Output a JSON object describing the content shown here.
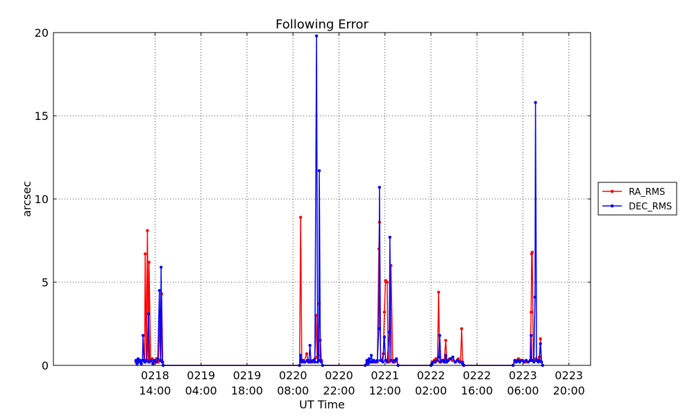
{
  "chart_data": {
    "type": "line",
    "title": "Following Error",
    "xlabel": "UT Time",
    "ylabel": "arcsec",
    "ylim": [
      0,
      20
    ],
    "xlim": [
      "2011-02-17 07:04",
      "2011-02-24 02:36"
    ],
    "x_unit": "UT time",
    "yticks": [
      0,
      5,
      10,
      15,
      20
    ],
    "xticks": [
      {
        "at": "2011-02-18 14:00",
        "date": "0218",
        "time": "14:00"
      },
      {
        "at": "2011-02-19 04:00",
        "date": "0219",
        "time": "04:00"
      },
      {
        "at": "2011-02-19 18:00",
        "date": "0219",
        "time": "18:00"
      },
      {
        "at": "2011-02-20 08:00",
        "date": "0220",
        "time": "08:00"
      },
      {
        "at": "2011-02-20 22:00",
        "date": "0220",
        "time": "22:00"
      },
      {
        "at": "2011-02-21 12:00",
        "date": "0221",
        "time": "12:00"
      },
      {
        "at": "2011-02-22 02:00",
        "date": "0222",
        "time": "02:00"
      },
      {
        "at": "2011-02-22 16:00",
        "date": "0222",
        "time": "16:00"
      },
      {
        "at": "2011-02-23 06:00",
        "date": "0223",
        "time": "06:00"
      },
      {
        "at": "2011-02-23 20:00",
        "date": "0223",
        "time": "20:00"
      }
    ],
    "grid": true,
    "legend_position": "right",
    "series": [
      {
        "name": "RA_RMS",
        "color": "#ff0000",
        "points": [
          [
            "2011-02-18 08:10",
            0.2
          ],
          [
            "2011-02-18 08:50",
            0.3
          ],
          [
            "2011-02-18 09:30",
            0.2
          ],
          [
            "2011-02-18 10:10",
            0.3
          ],
          [
            "2011-02-18 10:50",
            0.2
          ],
          [
            "2011-02-18 11:00",
            6.7
          ],
          [
            "2011-02-18 11:20",
            0.3
          ],
          [
            "2011-02-18 11:40",
            8.1
          ],
          [
            "2011-02-18 12:00",
            0.2
          ],
          [
            "2011-02-18 12:10",
            6.2
          ],
          [
            "2011-02-18 12:40",
            0.3
          ],
          [
            "2011-02-18 13:10",
            0.4
          ],
          [
            "2011-02-18 13:40",
            0.2
          ],
          [
            "2011-02-18 14:30",
            0.4
          ],
          [
            "2011-02-18 15:00",
            0.2
          ],
          [
            "2011-02-18 15:20",
            2.6
          ],
          [
            "2011-02-18 15:40",
            0.3
          ],
          [
            "2011-02-18 16:00",
            4.3
          ],
          [
            "2011-02-18 16:20",
            0.2
          ],
          [
            "2011-02-18 16:30",
            0
          ],
          [
            "2011-02-20 10:00",
            0
          ],
          [
            "2011-02-20 10:20",
            8.9
          ],
          [
            "2011-02-20 10:40",
            0.3
          ],
          [
            "2011-02-20 11:20",
            0.2
          ],
          [
            "2011-02-20 12:10",
            0.7
          ],
          [
            "2011-02-20 12:40",
            0.2
          ],
          [
            "2011-02-20 13:20",
            0.3
          ],
          [
            "2011-02-20 14:00",
            0.2
          ],
          [
            "2011-02-20 14:40",
            0.4
          ],
          [
            "2011-02-20 15:00",
            3.0
          ],
          [
            "2011-02-20 15:20",
            0.5
          ],
          [
            "2011-02-20 15:40",
            0.6
          ],
          [
            "2011-02-20 16:00",
            3.7
          ],
          [
            "2011-02-20 16:20",
            1.5
          ],
          [
            "2011-02-20 16:40",
            0.3
          ],
          [
            "2011-02-20 17:00",
            0
          ],
          [
            "2011-02-21 06:00",
            0
          ],
          [
            "2011-02-21 06:30",
            0.2
          ],
          [
            "2011-02-21 07:10",
            0.3
          ],
          [
            "2011-02-21 07:50",
            0.2
          ],
          [
            "2011-02-21 08:20",
            0.3
          ],
          [
            "2011-02-21 08:50",
            0.2
          ],
          [
            "2011-02-21 09:40",
            0.2
          ],
          [
            "2011-02-21 10:10",
            7.0
          ],
          [
            "2011-02-21 10:20",
            8.6
          ],
          [
            "2011-02-21 10:40",
            0.3
          ],
          [
            "2011-02-21 11:00",
            0.3
          ],
          [
            "2011-02-21 11:30",
            0.7
          ],
          [
            "2011-02-21 11:50",
            3.2
          ],
          [
            "2011-02-21 12:10",
            5.1
          ],
          [
            "2011-02-21 12:40",
            5.0
          ],
          [
            "2011-02-21 13:00",
            0.3
          ],
          [
            "2011-02-21 13:20",
            0.2
          ],
          [
            "2011-02-21 13:50",
            6.0
          ],
          [
            "2011-02-21 14:20",
            0.3
          ],
          [
            "2011-02-21 15:00",
            0.2
          ],
          [
            "2011-02-21 15:30",
            0.3
          ],
          [
            "2011-02-21 16:00",
            0
          ],
          [
            "2011-02-22 02:00",
            0
          ],
          [
            "2011-02-22 02:20",
            0.2
          ],
          [
            "2011-02-22 03:00",
            0.3
          ],
          [
            "2011-02-22 03:30",
            0.4
          ],
          [
            "2011-02-22 04:00",
            0.3
          ],
          [
            "2011-02-22 04:20",
            4.4
          ],
          [
            "2011-02-22 04:40",
            0.2
          ],
          [
            "2011-02-22 05:20",
            0.3
          ],
          [
            "2011-02-22 06:00",
            0.2
          ],
          [
            "2011-02-22 06:30",
            1.5
          ],
          [
            "2011-02-22 06:50",
            0.3
          ],
          [
            "2011-02-22 07:40",
            0.4
          ],
          [
            "2011-02-22 08:30",
            0.3
          ],
          [
            "2011-02-22 09:30",
            0.2
          ],
          [
            "2011-02-22 10:20",
            0.4
          ],
          [
            "2011-02-22 11:00",
            0.2
          ],
          [
            "2011-02-22 11:20",
            2.2
          ],
          [
            "2011-02-22 11:40",
            0.2
          ],
          [
            "2011-02-22 12:00",
            0
          ],
          [
            "2011-02-23 03:00",
            0
          ],
          [
            "2011-02-23 03:30",
            0.2
          ],
          [
            "2011-02-23 04:10",
            0.3
          ],
          [
            "2011-02-23 04:40",
            0.4
          ],
          [
            "2011-02-23 05:20",
            0.3
          ],
          [
            "2011-02-23 06:00",
            0.3
          ],
          [
            "2011-02-23 07:00",
            0.2
          ],
          [
            "2011-02-23 08:10",
            0.3
          ],
          [
            "2011-02-23 08:30",
            3.2
          ],
          [
            "2011-02-23 08:40",
            6.7
          ],
          [
            "2011-02-23 08:50",
            6.8
          ],
          [
            "2011-02-23 09:10",
            0.3
          ],
          [
            "2011-02-23 09:40",
            0.3
          ],
          [
            "2011-02-23 10:00",
            0.4
          ],
          [
            "2011-02-23 10:30",
            0.3
          ],
          [
            "2011-02-23 11:00",
            0.5
          ],
          [
            "2011-02-23 11:20",
            1.6
          ],
          [
            "2011-02-23 11:40",
            0.2
          ],
          [
            "2011-02-23 12:00",
            0
          ]
        ]
      },
      {
        "name": "DEC_RMS",
        "color": "#0000ff",
        "points": [
          [
            "2011-02-18 08:10",
            0.3
          ],
          [
            "2011-02-18 08:30",
            0.1
          ],
          [
            "2011-02-18 08:50",
            0.4
          ],
          [
            "2011-02-18 09:10",
            0.2
          ],
          [
            "2011-02-18 09:30",
            0.3
          ],
          [
            "2011-02-18 09:50",
            0.1
          ],
          [
            "2011-02-18 10:10",
            0.3
          ],
          [
            "2011-02-18 10:20",
            1.8
          ],
          [
            "2011-02-18 10:40",
            0.3
          ],
          [
            "2011-02-18 11:00",
            0.2
          ],
          [
            "2011-02-18 11:30",
            0.3
          ],
          [
            "2011-02-18 12:00",
            3.1
          ],
          [
            "2011-02-18 12:20",
            0.2
          ],
          [
            "2011-02-18 12:50",
            0.3
          ],
          [
            "2011-02-18 13:20",
            0.1
          ],
          [
            "2011-02-18 13:50",
            0.3
          ],
          [
            "2011-02-18 14:20",
            0.2
          ],
          [
            "2011-02-18 14:50",
            0.4
          ],
          [
            "2011-02-18 15:20",
            4.5
          ],
          [
            "2011-02-18 15:40",
            0.3
          ],
          [
            "2011-02-18 15:50",
            5.9
          ],
          [
            "2011-02-18 16:10",
            0.2
          ],
          [
            "2011-02-18 16:30",
            0
          ],
          [
            "2011-02-20 10:00",
            0
          ],
          [
            "2011-02-20 10:20",
            0.6
          ],
          [
            "2011-02-20 10:40",
            0.2
          ],
          [
            "2011-02-20 11:00",
            0.3
          ],
          [
            "2011-02-20 11:40",
            0.2
          ],
          [
            "2011-02-20 12:20",
            0.3
          ],
          [
            "2011-02-20 12:50",
            0.2
          ],
          [
            "2011-02-20 13:10",
            1.2
          ],
          [
            "2011-02-20 13:30",
            0.2
          ],
          [
            "2011-02-20 14:10",
            0.3
          ],
          [
            "2011-02-20 14:40",
            0.2
          ],
          [
            "2011-02-20 15:10",
            19.8
          ],
          [
            "2011-02-20 15:30",
            0.2
          ],
          [
            "2011-02-20 15:50",
            0.3
          ],
          [
            "2011-02-20 16:00",
            11.7
          ],
          [
            "2011-02-20 16:20",
            0.3
          ],
          [
            "2011-02-20 16:40",
            0.2
          ],
          [
            "2011-02-20 17:00",
            0
          ],
          [
            "2011-02-21 06:00",
            0
          ],
          [
            "2011-02-21 06:30",
            0.3
          ],
          [
            "2011-02-21 06:50",
            0.1
          ],
          [
            "2011-02-21 07:10",
            0.4
          ],
          [
            "2011-02-21 07:30",
            0.2
          ],
          [
            "2011-02-21 07:50",
            0.6
          ],
          [
            "2011-02-21 08:10",
            0.2
          ],
          [
            "2011-02-21 08:40",
            0.3
          ],
          [
            "2011-02-21 09:10",
            0.2
          ],
          [
            "2011-02-21 09:40",
            0.3
          ],
          [
            "2011-02-21 10:10",
            2.2
          ],
          [
            "2011-02-21 10:20",
            10.7
          ],
          [
            "2011-02-21 10:40",
            0.3
          ],
          [
            "2011-02-21 11:20",
            0.2
          ],
          [
            "2011-02-21 11:50",
            1.7
          ],
          [
            "2011-02-21 12:10",
            0.3
          ],
          [
            "2011-02-21 12:40",
            0.2
          ],
          [
            "2011-02-21 13:20",
            2.0
          ],
          [
            "2011-02-21 13:30",
            7.7
          ],
          [
            "2011-02-21 13:50",
            0.3
          ],
          [
            "2011-02-21 14:30",
            0.2
          ],
          [
            "2011-02-21 15:00",
            0.3
          ],
          [
            "2011-02-21 15:30",
            0.4
          ],
          [
            "2011-02-21 16:00",
            0
          ],
          [
            "2011-02-22 02:00",
            0
          ],
          [
            "2011-02-22 02:20",
            0.1
          ],
          [
            "2011-02-22 02:50",
            0.2
          ],
          [
            "2011-02-22 03:20",
            0.2
          ],
          [
            "2011-02-22 03:50",
            0.3
          ],
          [
            "2011-02-22 04:20",
            0.5
          ],
          [
            "2011-02-22 04:40",
            1.8
          ],
          [
            "2011-02-22 05:00",
            0.2
          ],
          [
            "2011-02-22 05:40",
            0.3
          ],
          [
            "2011-02-22 06:10",
            0.2
          ],
          [
            "2011-02-22 06:30",
            0.6
          ],
          [
            "2011-02-22 06:50",
            0.2
          ],
          [
            "2011-02-22 07:20",
            0.3
          ],
          [
            "2011-02-22 08:00",
            0.4
          ],
          [
            "2011-02-22 08:40",
            0.5
          ],
          [
            "2011-02-22 09:20",
            0.2
          ],
          [
            "2011-02-22 10:00",
            0.3
          ],
          [
            "2011-02-22 10:40",
            0.2
          ],
          [
            "2011-02-22 11:20",
            0.2
          ],
          [
            "2011-02-22 11:40",
            0.1
          ],
          [
            "2011-02-22 12:00",
            0
          ],
          [
            "2011-02-23 03:00",
            0
          ],
          [
            "2011-02-23 03:30",
            0.3
          ],
          [
            "2011-02-23 04:00",
            0.2
          ],
          [
            "2011-02-23 04:30",
            0.3
          ],
          [
            "2011-02-23 05:00",
            0.2
          ],
          [
            "2011-02-23 05:40",
            0.3
          ],
          [
            "2011-02-23 06:20",
            0.2
          ],
          [
            "2011-02-23 07:00",
            0.3
          ],
          [
            "2011-02-23 07:40",
            0.2
          ],
          [
            "2011-02-23 08:20",
            0.3
          ],
          [
            "2011-02-23 08:30",
            1.8
          ],
          [
            "2011-02-23 08:40",
            0.3
          ],
          [
            "2011-02-23 09:20",
            0.2
          ],
          [
            "2011-02-23 09:40",
            4.1
          ],
          [
            "2011-02-23 09:50",
            15.8
          ],
          [
            "2011-02-23 10:10",
            0.3
          ],
          [
            "2011-02-23 10:40",
            0.2
          ],
          [
            "2011-02-23 11:00",
            0.3
          ],
          [
            "2011-02-23 11:20",
            1.3
          ],
          [
            "2011-02-23 11:40",
            0.2
          ],
          [
            "2011-02-23 12:00",
            0
          ]
        ]
      }
    ]
  }
}
